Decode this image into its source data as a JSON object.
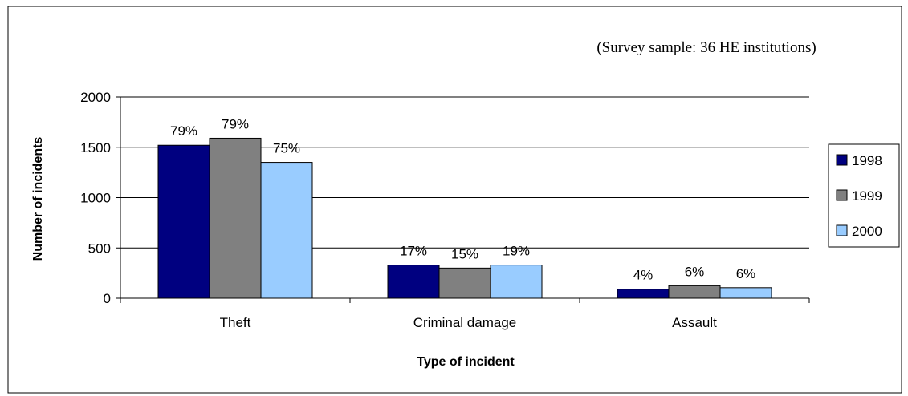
{
  "chart_data": {
    "type": "bar",
    "title": "",
    "subtitle": "(Survey sample: 36 HE institutions)",
    "xlabel": "Type of incident",
    "ylabel": "Number of incidents",
    "categories": [
      "Theft",
      "Criminal damage",
      "Assault"
    ],
    "ylim": [
      0,
      2000
    ],
    "yticks": [
      0,
      500,
      1000,
      1500,
      2000
    ],
    "grid": true,
    "legend_position": "right",
    "series": [
      {
        "name": "1998",
        "color": "#000080",
        "values": [
          1520,
          330,
          90
        ],
        "labels": [
          "79%",
          "17%",
          "4%"
        ]
      },
      {
        "name": "1999",
        "color": "#808080",
        "values": [
          1590,
          300,
          125
        ],
        "labels": [
          "79%",
          "15%",
          "6%"
        ]
      },
      {
        "name": "2000",
        "color": "#99ccff",
        "values": [
          1350,
          330,
          105
        ],
        "labels": [
          "75%",
          "19%",
          "6%"
        ]
      }
    ]
  }
}
